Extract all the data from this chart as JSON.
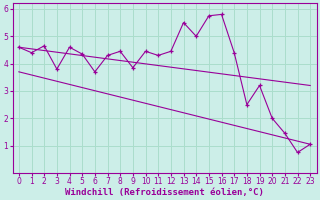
{
  "background_color": "#cceee8",
  "grid_color": "#aaddcc",
  "line_color": "#990099",
  "xlabel": "Windchill (Refroidissement éolien,°C)",
  "xlim": [
    -0.5,
    23.5
  ],
  "ylim": [
    0,
    6.2
  ],
  "xticks": [
    0,
    1,
    2,
    3,
    4,
    5,
    6,
    7,
    8,
    9,
    10,
    11,
    12,
    13,
    14,
    15,
    16,
    17,
    18,
    19,
    20,
    21,
    22,
    23
  ],
  "yticks": [
    1,
    2,
    3,
    4,
    5,
    6
  ],
  "line1_x": [
    0,
    1,
    2,
    3,
    4,
    5,
    6,
    7,
    8,
    9,
    10,
    11,
    12,
    13,
    14,
    15,
    16,
    17,
    18,
    19,
    20,
    21,
    22,
    23
  ],
  "line1_y": [
    4.6,
    4.4,
    4.65,
    3.8,
    4.6,
    4.35,
    3.7,
    4.3,
    4.45,
    3.85,
    4.45,
    4.3,
    4.45,
    5.5,
    5.0,
    5.75,
    5.8,
    4.4,
    2.5,
    3.2,
    2.0,
    1.45,
    0.75,
    1.05
  ],
  "line2_x": [
    0,
    23
  ],
  "line2_y": [
    4.6,
    3.2
  ],
  "line3_x": [
    0,
    23
  ],
  "line3_y": [
    3.7,
    1.05
  ],
  "font_size_label": 6.5,
  "font_size_tick": 5.5
}
